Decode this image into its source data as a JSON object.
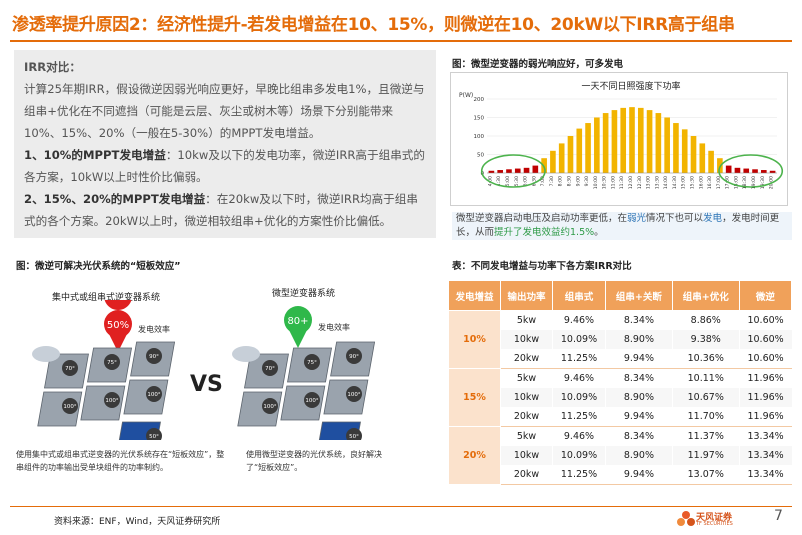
{
  "title": "渗透率提升原因2：经济性提升-若发电增益在10、15%，则微逆在10、20kW以下IRR高于组串",
  "text": {
    "heading": "IRR对比：",
    "para1": "计算25年期IRR，假设微逆因弱光响应更好，早晚比组串多发电1%，且微逆与组串+优化在不同遮挡（可能是云层、灰尘或树木等）场景下分别能带来10%、15%、20%（一般在5-30%）的MPPT发电增益。",
    "item1_bold": "1、10%的MPPT发电增益",
    "item1_text": "：10kw及以下的发电功率，微逆IRR高于组串式的各方案，10kW以上时性价比偏弱。",
    "item2_bold": "2、15%、20%的MPPT发电增益",
    "item2_text": "：在20kw及以下时，微逆IRR均高于组串式的各个方案。20kW以上时，微逆相较组串+优化的方案性价比偏低。"
  },
  "chart_fig": {
    "caption": "图：微型逆变器的弱光响应好，可多发电",
    "note_a": "微型逆变器启动电压及启动功率更低，在",
    "note_hl1": "弱光",
    "note_b": "情况下也可以",
    "note_hl2": "发电",
    "note_c": "，发电时间更长，从而",
    "note_hl3": "提升了发电效益约1.5%",
    "note_d": "。"
  },
  "chart_data": {
    "type": "bar",
    "title": "一天不同日照强度下功率",
    "ylabel": "P(W)",
    "ylim": [
      0,
      200
    ],
    "y_ticks": [
      "200",
      "150",
      "100",
      "50",
      "0"
    ],
    "categories": [
      "4:00",
      "4:30",
      "5:00",
      "5:30",
      "6:00",
      "6:30",
      "7:00",
      "7:30",
      "8:00",
      "8:30",
      "9:00",
      "9:30",
      "10:00",
      "10:30",
      "11:00",
      "11:30",
      "12:00",
      "12:30",
      "13:00",
      "13:30",
      "14:00",
      "14:30",
      "15:00",
      "15:30",
      "16:00",
      "16:30",
      "17:00",
      "17:30",
      "18:00",
      "18:30",
      "19:00",
      "19:30",
      "20:00"
    ],
    "series": [
      {
        "values": [
          6,
          8,
          10,
          12,
          14,
          20,
          40,
          60,
          80,
          100,
          120,
          135,
          150,
          162,
          170,
          176,
          178,
          176,
          170,
          162,
          150,
          135,
          118,
          100,
          80,
          60,
          40,
          20,
          14,
          12,
          10,
          8,
          6
        ]
      }
    ],
    "colors": {
      "weak_light": "#c00000",
      "normal": "#f2b400",
      "highlight_circle": "#4cb34c"
    }
  },
  "shading_fig": {
    "caption": "图：微逆可解决光伏系统的“短板效应”",
    "left_title": "集中式或组串式逆变器系统",
    "right_title": "微型逆变器系统",
    "left_pin": "50%",
    "right_pin": "80+",
    "efficiency_label": "发电效率",
    "vs": "VS",
    "left_panels": [
      "70°",
      "75°",
      "90°",
      "100°",
      "100°",
      "100°",
      "50°"
    ],
    "right_panels": [
      "70°",
      "75°",
      "90°",
      "100°",
      "100°",
      "100°",
      "50°"
    ],
    "left_note": "使用集中式或组串式逆变器的光伏系统存在“短板效应”，整串组件的功率输出受单块组件的功率制约。",
    "right_note": "使用微型逆变器的光伏系统，良好解决了“短板效应”。"
  },
  "table": {
    "caption": "表：不同发电增益与功率下各方案IRR对比",
    "headers": [
      "发电增益",
      "输出功率",
      "组串式",
      "组串+关断",
      "组串+优化",
      "微逆"
    ],
    "groups": [
      {
        "gain": "10%",
        "rows": [
          [
            "5kw",
            "9.46%",
            "8.34%",
            "8.86%",
            "10.60%"
          ],
          [
            "10kw",
            "10.09%",
            "8.90%",
            "9.38%",
            "10.60%"
          ],
          [
            "20kw",
            "11.25%",
            "9.94%",
            "10.36%",
            "10.60%"
          ]
        ]
      },
      {
        "gain": "15%",
        "rows": [
          [
            "5kw",
            "9.46%",
            "8.34%",
            "10.11%",
            "11.96%"
          ],
          [
            "10kw",
            "10.09%",
            "8.90%",
            "10.67%",
            "11.96%"
          ],
          [
            "20kw",
            "11.25%",
            "9.94%",
            "11.70%",
            "11.96%"
          ]
        ]
      },
      {
        "gain": "20%",
        "rows": [
          [
            "5kw",
            "9.46%",
            "8.34%",
            "11.37%",
            "13.34%"
          ],
          [
            "10kw",
            "10.09%",
            "8.90%",
            "11.97%",
            "13.34%"
          ],
          [
            "20kw",
            "11.25%",
            "9.94%",
            "13.07%",
            "13.34%"
          ]
        ]
      }
    ]
  },
  "footer": {
    "source": "资料来源：ENF，Wind，天风证券研究所",
    "logo_text": "天风证券",
    "logo_sub": "TF SECURITIES",
    "page": "7"
  }
}
